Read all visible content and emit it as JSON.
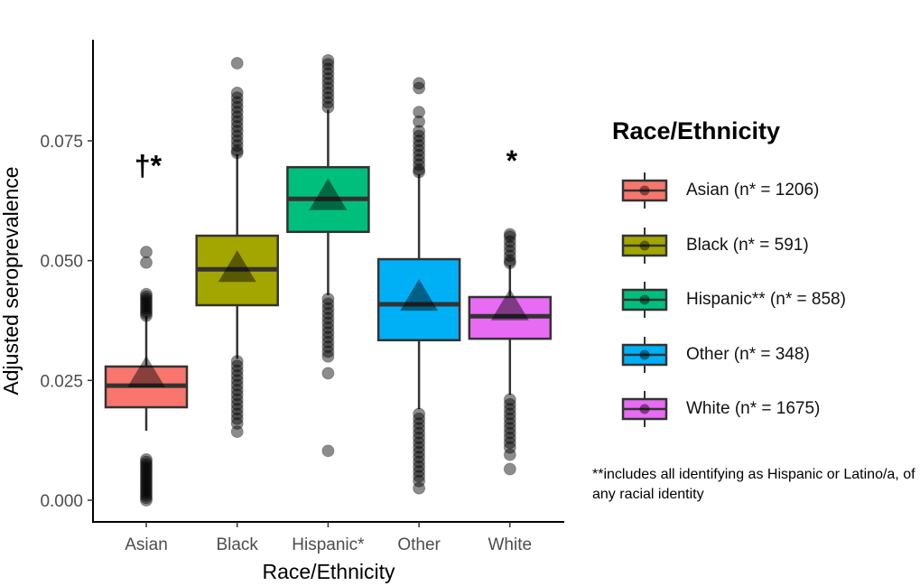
{
  "chart_data": {
    "type": "boxplot",
    "xlabel": "Race/Ethnicity",
    "ylabel": "Adjusted seroprevalence",
    "ylim": [
      -0.004,
      0.094
    ],
    "yticks": [
      "0.000",
      "0.025",
      "0.050",
      "0.075"
    ],
    "ytick_values": [
      0,
      0.025,
      0.05,
      0.075
    ],
    "grid": false,
    "categories": [
      "Asian",
      "Black",
      "Hispanic*",
      "Other",
      "White"
    ],
    "series": [
      {
        "category": "Asian",
        "color": "#F8766D",
        "q1": 0.0194,
        "median": 0.0239,
        "q3": 0.0279,
        "mean": 0.026,
        "whisker_low": 0.0145,
        "whisker_high": 0.0384,
        "outliers": [
          0.0,
          0.0005,
          0.001,
          0.0015,
          0.002,
          0.0025,
          0.003,
          0.0035,
          0.004,
          0.0045,
          0.005,
          0.0055,
          0.006,
          0.0065,
          0.007,
          0.0075,
          0.008,
          0.0085,
          0.0385,
          0.039,
          0.0395,
          0.04,
          0.0405,
          0.041,
          0.0415,
          0.042,
          0.0425,
          0.043,
          0.0496,
          0.0518
        ]
      },
      {
        "category": "Black",
        "color": "#A3A500",
        "q1": 0.0407,
        "median": 0.0482,
        "q3": 0.0552,
        "mean": 0.048,
        "whisker_low": 0.0295,
        "whisker_high": 0.0722,
        "outliers": [
          0.0143,
          0.016,
          0.017,
          0.018,
          0.019,
          0.02,
          0.021,
          0.022,
          0.023,
          0.024,
          0.025,
          0.026,
          0.027,
          0.028,
          0.029,
          0.0725,
          0.073,
          0.074,
          0.075,
          0.076,
          0.077,
          0.078,
          0.079,
          0.08,
          0.081,
          0.082,
          0.083,
          0.084,
          0.085,
          0.0912
        ]
      },
      {
        "category": "Hispanic*",
        "color": "#00BF7D",
        "q1": 0.056,
        "median": 0.0629,
        "q3": 0.0695,
        "mean": 0.063,
        "whisker_low": 0.0428,
        "whisker_high": 0.0815,
        "outliers": [
          0.0103,
          0.0265,
          0.03,
          0.031,
          0.032,
          0.033,
          0.034,
          0.035,
          0.036,
          0.037,
          0.038,
          0.039,
          0.04,
          0.041,
          0.042,
          0.082,
          0.083,
          0.084,
          0.085,
          0.086,
          0.087,
          0.088,
          0.089,
          0.09,
          0.091,
          0.0918
        ]
      },
      {
        "category": "Other",
        "color": "#00B0F6",
        "q1": 0.0334,
        "median": 0.0409,
        "q3": 0.0503,
        "mean": 0.042,
        "whisker_low": 0.019,
        "whisker_high": 0.068,
        "outliers": [
          0.0025,
          0.004,
          0.005,
          0.006,
          0.007,
          0.008,
          0.009,
          0.01,
          0.011,
          0.012,
          0.013,
          0.014,
          0.015,
          0.016,
          0.017,
          0.018,
          0.0685,
          0.069,
          0.07,
          0.071,
          0.072,
          0.073,
          0.074,
          0.075,
          0.076,
          0.077,
          0.079,
          0.081,
          0.086,
          0.087
        ]
      },
      {
        "category": "White",
        "color": "#E76BF3",
        "q1": 0.0337,
        "median": 0.0384,
        "q3": 0.0424,
        "mean": 0.04,
        "whisker_low": 0.022,
        "whisker_high": 0.049,
        "outliers": [
          0.0065,
          0.0095,
          0.011,
          0.012,
          0.013,
          0.014,
          0.015,
          0.016,
          0.017,
          0.018,
          0.019,
          0.02,
          0.021,
          0.0495,
          0.05,
          0.051,
          0.052,
          0.053,
          0.054,
          0.055,
          0.0555
        ]
      }
    ],
    "annotations": [
      {
        "category": "Asian",
        "text": "†*",
        "y": 0.07
      },
      {
        "category": "White",
        "text": "*",
        "y": 0.071
      }
    ]
  },
  "legend": {
    "title": "Race/Ethnicity",
    "items": [
      {
        "label": "Asian (n* = 1206)",
        "color": "#F8766D"
      },
      {
        "label": "Black (n* = 591)",
        "color": "#A3A500"
      },
      {
        "label": "Hispanic** (n* = 858)",
        "color": "#00BF7D"
      },
      {
        "label": "Other (n* = 348)",
        "color": "#00B0F6"
      },
      {
        "label": "White (n* = 1675)",
        "color": "#E76BF3"
      }
    ],
    "note": "**includes all identifying as Hispanic or Latino/a, of any racial identity"
  }
}
